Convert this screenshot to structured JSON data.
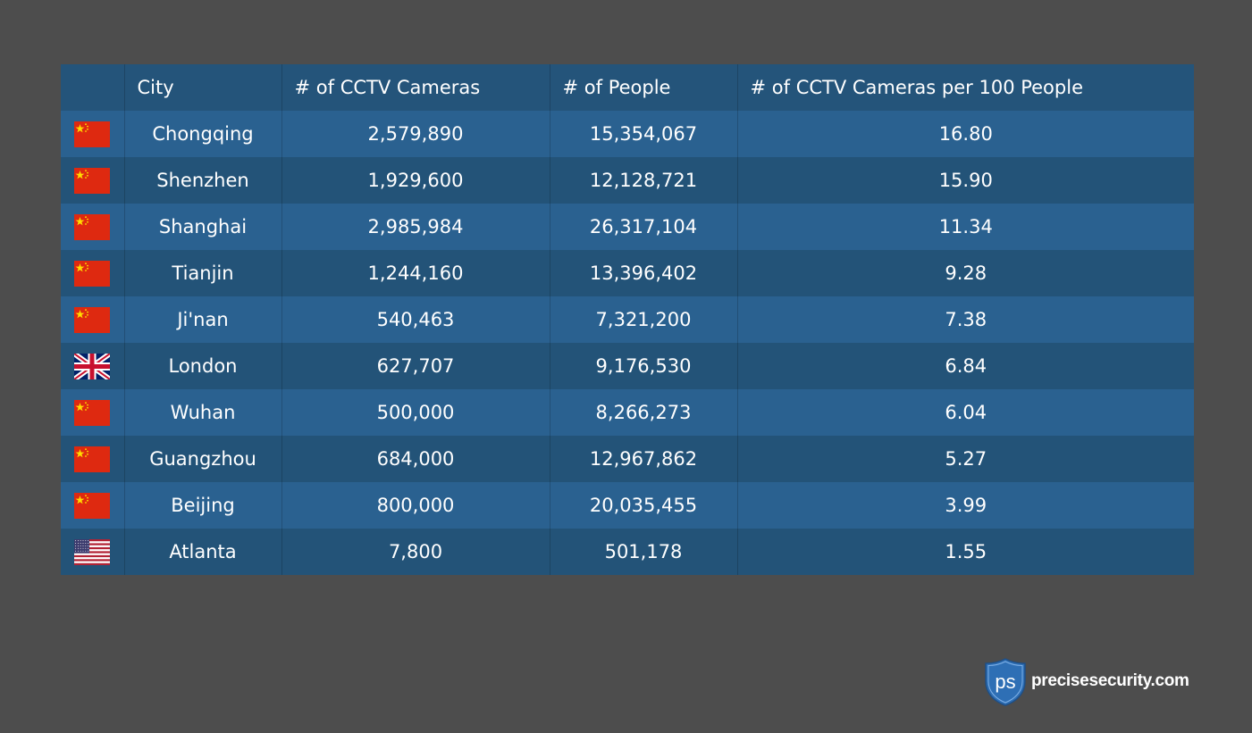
{
  "chart_data": {
    "type": "table",
    "columns": [
      "",
      "City",
      "# of CCTV Cameras",
      "# of People",
      "# of CCTV Cameras per 100 People"
    ],
    "rows": [
      {
        "flag": "china-flag-icon",
        "city": "Chongqing",
        "cameras": "2,579,890",
        "people": "15,354,067",
        "per100": "16.80"
      },
      {
        "flag": "china-flag-icon",
        "city": "Shenzhen",
        "cameras": "1,929,600",
        "people": "12,128,721",
        "per100": "15.90"
      },
      {
        "flag": "china-flag-icon",
        "city": "Shanghai",
        "cameras": "2,985,984",
        "people": "26,317,104",
        "per100": "11.34"
      },
      {
        "flag": "china-flag-icon",
        "city": "Tianjin",
        "cameras": "1,244,160",
        "people": "13,396,402",
        "per100": "9.28"
      },
      {
        "flag": "china-flag-icon",
        "city": "Ji'nan",
        "cameras": "540,463",
        "people": "7,321,200",
        "per100": "7.38"
      },
      {
        "flag": "uk-flag-icon",
        "city": "London",
        "cameras": "627,707",
        "people": "9,176,530",
        "per100": "6.84"
      },
      {
        "flag": "china-flag-icon",
        "city": "Wuhan",
        "cameras": "500,000",
        "people": "8,266,273",
        "per100": "6.04"
      },
      {
        "flag": "china-flag-icon",
        "city": "Guangzhou",
        "cameras": "684,000",
        "people": "12,967,862",
        "per100": "5.27"
      },
      {
        "flag": "china-flag-icon",
        "city": "Beijing",
        "cameras": "800,000",
        "people": "20,035,455",
        "per100": "3.99"
      },
      {
        "flag": "us-flag-icon",
        "city": "Atlanta",
        "cameras": "7,800",
        "people": "501,178",
        "per100": "1.55"
      }
    ]
  },
  "logo": {
    "mark": "ps",
    "text": "precisesecurity.com",
    "icon": "shield-icon"
  },
  "colors": {
    "background": "#4d4d4d",
    "header": "#24547a",
    "row_light": "#2a6190",
    "row_dark": "#235378",
    "text": "#ffffff",
    "logo_blue": "#2e6fb5"
  }
}
